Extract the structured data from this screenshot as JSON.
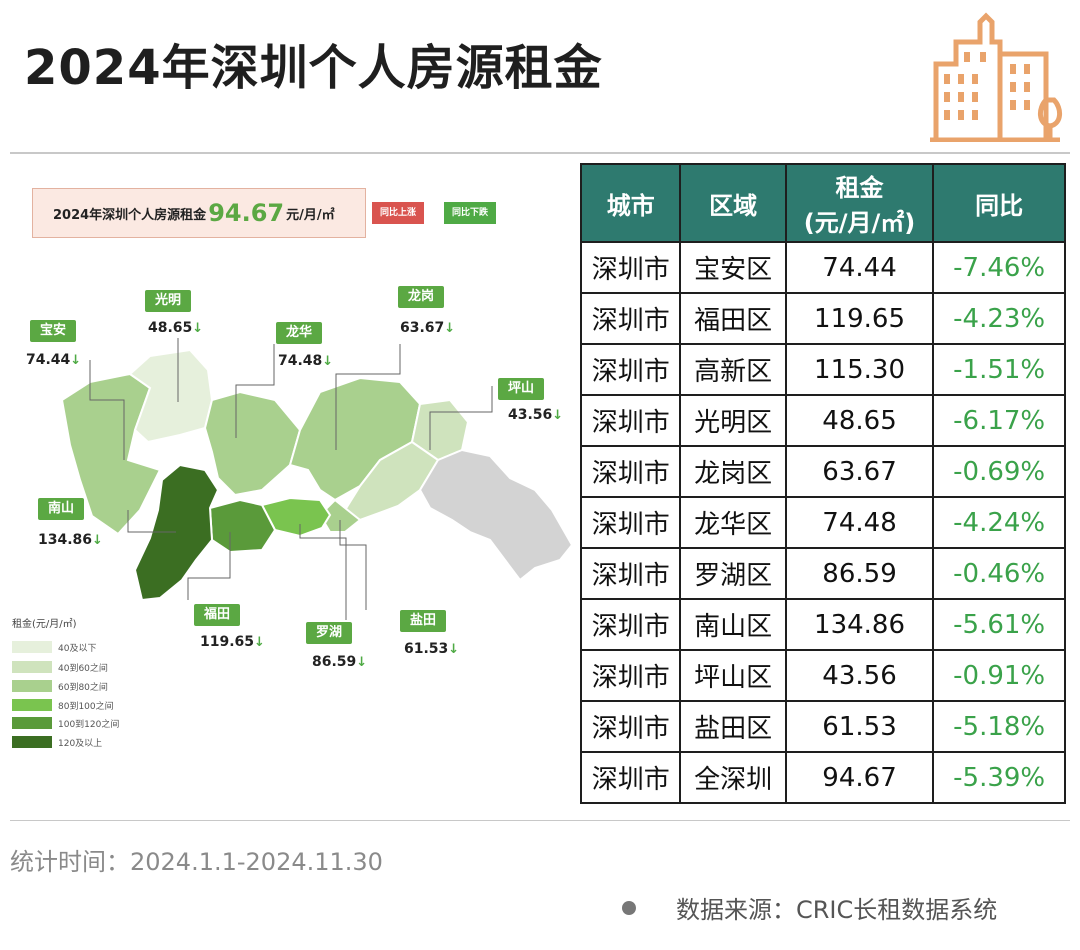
{
  "title": "2024年深圳个人房源租金",
  "summary": {
    "prefix": "2024年深圳个人房源租金",
    "value": "94.67",
    "unit": "元/月/㎡",
    "chip_up": "同比上涨",
    "chip_down": "同比下跌"
  },
  "map_labels": [
    {
      "name": "宝安",
      "value": "74.44",
      "arrow": "↓"
    },
    {
      "name": "光明",
      "value": "48.65",
      "arrow": "↓"
    },
    {
      "name": "龙华",
      "value": "74.48",
      "arrow": "↓"
    },
    {
      "name": "龙岗",
      "value": "63.67",
      "arrow": "↓"
    },
    {
      "name": "坪山",
      "value": "43.56",
      "arrow": "↓"
    },
    {
      "name": "南山",
      "value": "134.86",
      "arrow": "↓"
    },
    {
      "name": "福田",
      "value": "119.65",
      "arrow": "↓"
    },
    {
      "name": "罗湖",
      "value": "86.59",
      "arrow": "↓"
    },
    {
      "name": "盐田",
      "value": "61.53",
      "arrow": "↓"
    }
  ],
  "legend": {
    "title": "租金(元/月/㎡)",
    "items": [
      {
        "label": "40及以下",
        "color": "#e6f0dc"
      },
      {
        "label": "40到60之间",
        "color": "#cfe3bd"
      },
      {
        "label": "60到80之间",
        "color": "#a9d08e"
      },
      {
        "label": "80到100之间",
        "color": "#7ac44f"
      },
      {
        "label": "100到120之间",
        "color": "#5a9a3a"
      },
      {
        "label": "120及以上",
        "color": "#3b6e22"
      }
    ]
  },
  "table": {
    "headers": [
      "城市",
      "区域",
      "租金\n(元/月/㎡)",
      "同比"
    ],
    "header_rent_line1": "租金",
    "header_rent_line2": "(元/月/㎡)",
    "rows": [
      {
        "city": "深圳市",
        "district": "宝安区",
        "rent": "74.44",
        "change": "-7.46%"
      },
      {
        "city": "深圳市",
        "district": "福田区",
        "rent": "119.65",
        "change": "-4.23%"
      },
      {
        "city": "深圳市",
        "district": "高新区",
        "rent": "115.30",
        "change": "-1.51%"
      },
      {
        "city": "深圳市",
        "district": "光明区",
        "rent": "48.65",
        "change": "-6.17%"
      },
      {
        "city": "深圳市",
        "district": "龙岗区",
        "rent": "63.67",
        "change": "-0.69%"
      },
      {
        "city": "深圳市",
        "district": "龙华区",
        "rent": "74.48",
        "change": "-4.24%"
      },
      {
        "city": "深圳市",
        "district": "罗湖区",
        "rent": "86.59",
        "change": "-0.46%"
      },
      {
        "city": "深圳市",
        "district": "南山区",
        "rent": "134.86",
        "change": "-5.61%"
      },
      {
        "city": "深圳市",
        "district": "坪山区",
        "rent": "43.56",
        "change": "-0.91%"
      },
      {
        "city": "深圳市",
        "district": "盐田区",
        "rent": "61.53",
        "change": "-5.18%"
      },
      {
        "city": "深圳市",
        "district": "全深圳",
        "rent": "94.67",
        "change": "-5.39%"
      }
    ]
  },
  "footer": {
    "stat_time": "统计时间：2024.1.1-2024.11.30",
    "source": "数据来源：CRIC长租数据系统"
  },
  "colors": {
    "header_teal": "#2e7a6f",
    "change_green": "#3aa24a",
    "accent_green": "#5ba843",
    "logo_orange": "#e9a36b"
  }
}
